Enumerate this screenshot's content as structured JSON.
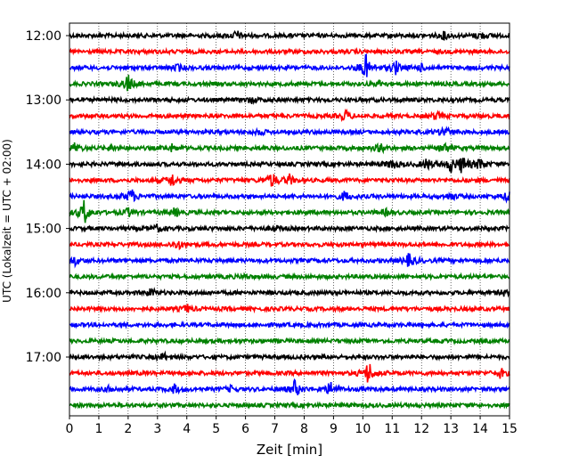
{
  "chart_data": {
    "type": "line",
    "title": "",
    "xlabel": "Zeit  [min]",
    "ylabel": "UTC (Lokalzeit = UTC + 02:00)",
    "xlim": [
      0,
      15
    ],
    "x_ticks": [
      "0",
      "1",
      "2",
      "3",
      "4",
      "5",
      "6",
      "7",
      "8",
      "9",
      "10",
      "11",
      "12",
      "13",
      "14",
      "15"
    ],
    "y_ticks": [
      "12:00",
      "13:00",
      "14:00",
      "15:00",
      "16:00",
      "17:00"
    ],
    "grid": "vertical dotted lines at every minute",
    "trace_interval_min": 15,
    "trace_colors_cycle": [
      "#000000",
      "#ff0000",
      "#0000ff",
      "#008000"
    ],
    "traces": [
      {
        "start": "12:00",
        "color": "#000000",
        "events": [
          {
            "t": 5.7,
            "amp": 0.35
          },
          {
            "t": 12.8,
            "amp": 0.3
          },
          {
            "t": 14.0,
            "amp": 0.3
          }
        ]
      },
      {
        "start": "12:15",
        "color": "#ff0000",
        "events": []
      },
      {
        "start": "12:30",
        "color": "#0000ff",
        "events": [
          {
            "t": 3.7,
            "amp": 0.25
          },
          {
            "t": 10.1,
            "amp": 1.0
          },
          {
            "t": 11.1,
            "amp": 0.55
          },
          {
            "t": 12.0,
            "amp": 0.25
          }
        ]
      },
      {
        "start": "12:45",
        "color": "#008000",
        "events": [
          {
            "t": 2.0,
            "amp": 0.7
          },
          {
            "t": 10.6,
            "amp": 0.2
          }
        ]
      },
      {
        "start": "13:00",
        "color": "#000000",
        "events": [
          {
            "t": 6.2,
            "amp": 0.2
          }
        ]
      },
      {
        "start": "13:15",
        "color": "#ff0000",
        "events": [
          {
            "t": 9.4,
            "amp": 0.4
          },
          {
            "t": 12.5,
            "amp": 0.3
          }
        ]
      },
      {
        "start": "13:30",
        "color": "#0000ff",
        "events": [
          {
            "t": 12.8,
            "amp": 0.5
          },
          {
            "t": 6.5,
            "amp": 0.2
          }
        ]
      },
      {
        "start": "13:45",
        "color": "#008000",
        "events": [
          {
            "t": 0.2,
            "amp": 0.4
          },
          {
            "t": 1.5,
            "amp": 0.25
          },
          {
            "t": 3.5,
            "amp": 0.25
          },
          {
            "t": 10.6,
            "amp": 0.35
          },
          {
            "t": 12.8,
            "amp": 0.4
          }
        ]
      },
      {
        "start": "14:00",
        "color": "#000000",
        "events": [
          {
            "t": 11.0,
            "amp": 0.45
          },
          {
            "t": 12.2,
            "amp": 0.45
          },
          {
            "t": 13.0,
            "amp": 0.55
          },
          {
            "t": 13.4,
            "amp": 0.7
          },
          {
            "t": 14.0,
            "amp": 0.45
          }
        ]
      },
      {
        "start": "14:15",
        "color": "#ff0000",
        "events": [
          {
            "t": 3.5,
            "amp": 0.5
          },
          {
            "t": 6.9,
            "amp": 0.6
          },
          {
            "t": 7.5,
            "amp": 0.4
          }
        ]
      },
      {
        "start": "14:30",
        "color": "#0000ff",
        "events": [
          {
            "t": 2.1,
            "amp": 0.6
          },
          {
            "t": 9.4,
            "amp": 0.4
          },
          {
            "t": 13.0,
            "amp": 0.3
          },
          {
            "t": 15.0,
            "amp": 0.6
          }
        ]
      },
      {
        "start": "14:45",
        "color": "#008000",
        "events": [
          {
            "t": 0.5,
            "amp": 1.0
          },
          {
            "t": 2.0,
            "amp": 0.3
          },
          {
            "t": 3.6,
            "amp": 0.3
          },
          {
            "t": 10.8,
            "amp": 0.2
          }
        ]
      },
      {
        "start": "15:00",
        "color": "#000000",
        "events": [
          {
            "t": 3.0,
            "amp": 0.25
          },
          {
            "t": 7.0,
            "amp": 0.2
          }
        ]
      },
      {
        "start": "15:15",
        "color": "#ff0000",
        "events": [
          {
            "t": 3.7,
            "amp": 0.35
          }
        ]
      },
      {
        "start": "15:30",
        "color": "#0000ff",
        "events": [
          {
            "t": 0.2,
            "amp": 0.35
          },
          {
            "t": 11.6,
            "amp": 0.6
          }
        ]
      },
      {
        "start": "15:45",
        "color": "#008000",
        "events": [
          {
            "t": 6.0,
            "amp": 0.15
          }
        ]
      },
      {
        "start": "16:00",
        "color": "#000000",
        "events": [
          {
            "t": 2.8,
            "amp": 0.3
          },
          {
            "t": 14.8,
            "amp": 0.2
          }
        ]
      },
      {
        "start": "16:15",
        "color": "#ff0000",
        "events": [
          {
            "t": 4.0,
            "amp": 0.3
          }
        ]
      },
      {
        "start": "16:30",
        "color": "#0000ff",
        "events": []
      },
      {
        "start": "16:45",
        "color": "#008000",
        "events": []
      },
      {
        "start": "17:00",
        "color": "#000000",
        "events": [
          {
            "t": 3.2,
            "amp": 0.25
          }
        ]
      },
      {
        "start": "17:15",
        "color": "#ff0000",
        "events": [
          {
            "t": 10.2,
            "amp": 0.9
          },
          {
            "t": 14.7,
            "amp": 0.35
          }
        ]
      },
      {
        "start": "17:30",
        "color": "#0000ff",
        "events": [
          {
            "t": 1.4,
            "amp": 0.25
          },
          {
            "t": 3.6,
            "amp": 0.35
          },
          {
            "t": 7.7,
            "amp": 0.7
          },
          {
            "t": 8.9,
            "amp": 0.55
          },
          {
            "t": 5.5,
            "amp": 0.2
          }
        ]
      },
      {
        "start": "17:45",
        "color": "#008000",
        "events": []
      }
    ]
  }
}
